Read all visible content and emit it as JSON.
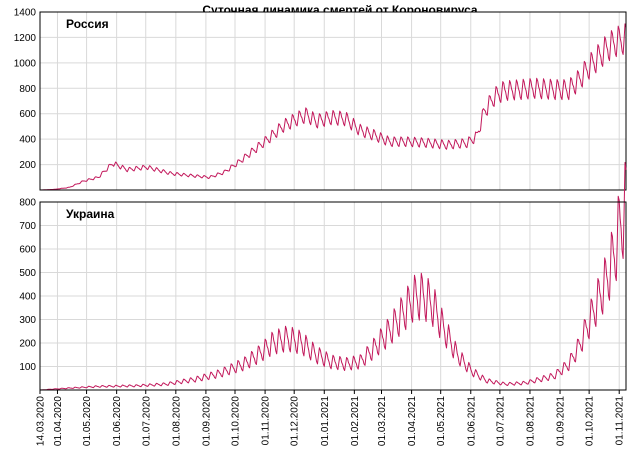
{
  "chart_data": {
    "type": "line",
    "title": "Суточная динамика смертей от Короновируса",
    "series_color": "#c2185b",
    "x_tick_labels": [
      "14.03.2020",
      "01.04.2020",
      "01.05.2020",
      "01.06.2020",
      "01.07.2020",
      "01.08.2020",
      "01.09.2020",
      "01.10.2020",
      "01.11.2020",
      "01.12.2020",
      "01.01.2021",
      "01.02.2021",
      "01.03.2021",
      "01.04.2021",
      "01.05.2021",
      "01.06.2021",
      "01.07.2021",
      "01.08.2021",
      "01.09.2021",
      "01.10.2021",
      "01.11.2021"
    ],
    "x_tick_days": [
      0,
      18,
      48,
      79,
      109,
      140,
      171,
      201,
      232,
      262,
      293,
      324,
      352,
      383,
      413,
      444,
      474,
      505,
      536,
      566,
      597
    ],
    "x_range_days": [
      0,
      604
    ],
    "panels": [
      {
        "name": "Россия",
        "ylim": [
          0,
          1400
        ],
        "yticks": [
          200,
          400,
          600,
          800,
          1000,
          1200,
          1400
        ],
        "keypoints": [
          [
            0,
            0
          ],
          [
            15,
            5
          ],
          [
            30,
            20
          ],
          [
            45,
            70
          ],
          [
            60,
            100
          ],
          [
            75,
            210
          ],
          [
            90,
            160
          ],
          [
            110,
            180
          ],
          [
            135,
            130
          ],
          [
            160,
            110
          ],
          [
            175,
            100
          ],
          [
            190,
            140
          ],
          [
            205,
            220
          ],
          [
            220,
            310
          ],
          [
            235,
            400
          ],
          [
            250,
            500
          ],
          [
            265,
            560
          ],
          [
            275,
            590
          ],
          [
            285,
            540
          ],
          [
            300,
            570
          ],
          [
            315,
            560
          ],
          [
            330,
            470
          ],
          [
            345,
            430
          ],
          [
            360,
            380
          ],
          [
            380,
            380
          ],
          [
            400,
            370
          ],
          [
            420,
            355
          ],
          [
            440,
            370
          ],
          [
            450,
            420
          ],
          [
            458,
            620
          ],
          [
            468,
            730
          ],
          [
            478,
            780
          ],
          [
            495,
            790
          ],
          [
            510,
            800
          ],
          [
            530,
            790
          ],
          [
            545,
            790
          ],
          [
            555,
            860
          ],
          [
            565,
            960
          ],
          [
            575,
            1040
          ],
          [
            585,
            1120
          ],
          [
            595,
            1170
          ],
          [
            604,
            1190
          ]
        ],
        "amplitude_ratio": 0.12
      },
      {
        "name": "Украина",
        "ylim": [
          0,
          800
        ],
        "yticks": [
          100,
          200,
          300,
          400,
          500,
          600,
          700,
          800
        ],
        "keypoints": [
          [
            0,
            0
          ],
          [
            30,
            8
          ],
          [
            60,
            15
          ],
          [
            100,
            18
          ],
          [
            130,
            25
          ],
          [
            160,
            45
          ],
          [
            185,
            70
          ],
          [
            210,
            110
          ],
          [
            225,
            150
          ],
          [
            240,
            200
          ],
          [
            255,
            220
          ],
          [
            270,
            200
          ],
          [
            285,
            150
          ],
          [
            300,
            120
          ],
          [
            315,
            110
          ],
          [
            330,
            120
          ],
          [
            345,
            180
          ],
          [
            360,
            250
          ],
          [
            375,
            330
          ],
          [
            385,
            390
          ],
          [
            395,
            400
          ],
          [
            405,
            360
          ],
          [
            415,
            270
          ],
          [
            430,
            150
          ],
          [
            445,
            80
          ],
          [
            460,
            40
          ],
          [
            480,
            25
          ],
          [
            500,
            30
          ],
          [
            515,
            45
          ],
          [
            530,
            60
          ],
          [
            545,
            110
          ],
          [
            555,
            180
          ],
          [
            565,
            280
          ],
          [
            575,
            380
          ],
          [
            585,
            480
          ],
          [
            592,
            580
          ],
          [
            598,
            700
          ],
          [
            604,
            790
          ]
        ],
        "amplitude_ratio": 0.3
      }
    ]
  }
}
